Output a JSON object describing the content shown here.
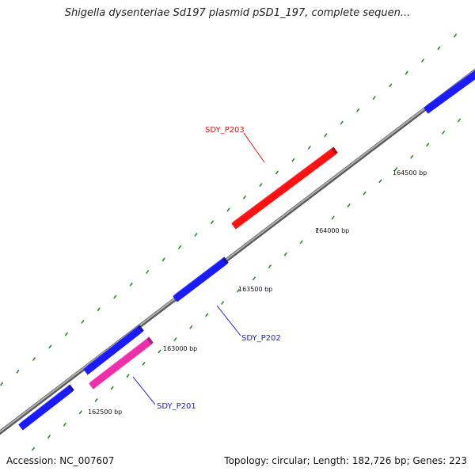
{
  "title": "Shigella dysenteriae Sd197 plasmid pSD1_197, complete sequen...",
  "accession": "Accession: NC_007607",
  "summary": "Topology: circular; Length: 182,726 bp; Genes: 223",
  "tick_labels": [
    "162500 bp",
    "163000 bp",
    "163500 bp",
    "164000 bp",
    "164500 bp"
  ],
  "genes": [
    {
      "id": "g1",
      "strand": "reverse",
      "color": "#1a1aff"
    },
    {
      "id": "g2",
      "strand": "reverse",
      "color": "#1a1aff"
    },
    {
      "id": "g3",
      "strand": "reverse",
      "color": "#ee2fa8",
      "label": "SDY_P201",
      "label_color": "#1a1acc"
    },
    {
      "id": "g4",
      "strand": "reverse",
      "color": "#1a1aff",
      "label": "SDY_P202",
      "label_color": "#1a1acc"
    },
    {
      "id": "g5",
      "strand": "forward",
      "color": "#ff1111",
      "label": "SDY_P203",
      "label_color": "#ee1111"
    },
    {
      "id": "g6",
      "strand": "reverse",
      "color": "#1a1aff"
    }
  ],
  "colors": {
    "backbone": "#8c8c8c",
    "tick": "#2a8a2a",
    "reverse_gene": "#1a1aff",
    "forward_gene": "#ff1111",
    "highlight_gene": "#ee2fa8"
  }
}
